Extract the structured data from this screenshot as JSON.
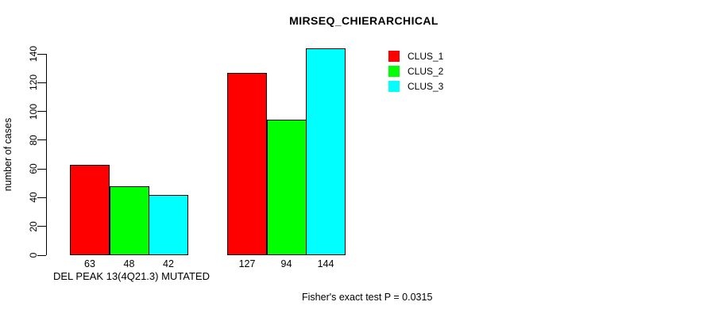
{
  "chart_data": {
    "type": "bar",
    "title": "MIRSEQ_CHIERARCHICAL",
    "ylabel": "number of cases",
    "xlabel": "DEL PEAK 13(4Q21.3) MUTATED",
    "annotation": "Fisher's exact test P = 0.0315",
    "ylim": [
      0,
      140
    ],
    "yticks": [
      0,
      20,
      40,
      60,
      80,
      100,
      120,
      140
    ],
    "grid": false,
    "groups": 2,
    "series": [
      {
        "name": "CLUS_1",
        "color": "#ff0000",
        "values": [
          63,
          127
        ]
      },
      {
        "name": "CLUS_2",
        "color": "#00ff00",
        "values": [
          48,
          94
        ]
      },
      {
        "name": "CLUS_3",
        "color": "#00ffff",
        "values": [
          42,
          144
        ]
      }
    ],
    "bar_value_labels": [
      [
        63,
        48,
        42
      ],
      [
        127,
        94,
        144
      ]
    ],
    "legend": {
      "position": "top-right",
      "entries": [
        {
          "label": "CLUS_1",
          "color": "#ff0000"
        },
        {
          "label": "CLUS_2",
          "color": "#00ff00"
        },
        {
          "label": "CLUS_3",
          "color": "#00ffff"
        }
      ]
    }
  }
}
